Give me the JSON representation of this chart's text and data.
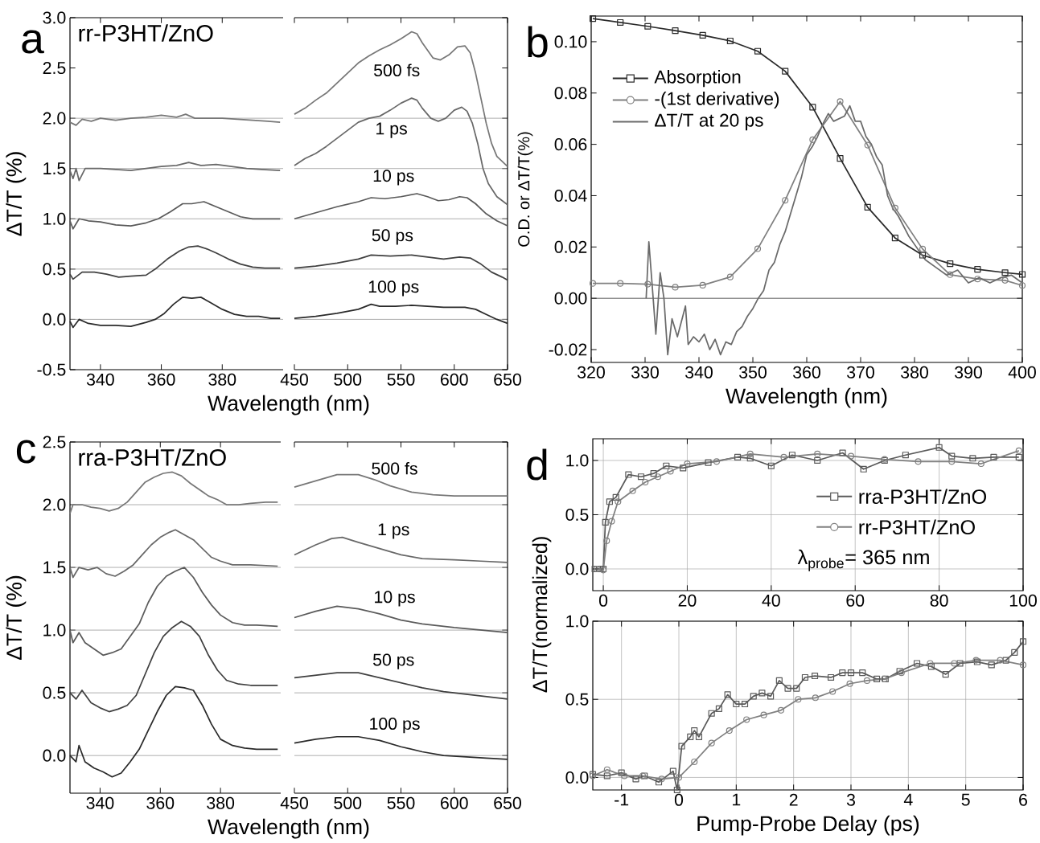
{
  "chart_data": [
    {
      "type": "line",
      "title": "a",
      "xlabel": "Wavelength (nm)",
      "ylabel": "ΔT/T (%)",
      "annotations": [
        "rr-P3HT/ZnO"
      ],
      "xlim": [
        330,
        400
      ],
      "ylim": [
        -0.5,
        3.0
      ],
      "xticks": [
        340,
        360,
        380
      ],
      "yticks": [
        {
          "value": -0.5,
          "label": "-0.5"
        },
        {
          "value": 0.0,
          "label": "0.0"
        },
        {
          "value": 0.5,
          "label": "0.5"
        },
        {
          "value": 1.0,
          "label": "1.0"
        },
        {
          "value": 1.5,
          "label": "1.5"
        },
        {
          "value": 2.0,
          "label": "2.0"
        },
        {
          "value": 2.5,
          "label": "2.5"
        },
        {
          "value": 3.0,
          "label": "3.0"
        }
      ],
      "ref_lines": [
        {
          "axis": "y",
          "value": 0,
          "color": "#999999"
        },
        {
          "axis": "y",
          "value": 0.5,
          "color": "#999999"
        },
        {
          "axis": "y",
          "value": 1.0,
          "color": "#999999"
        },
        {
          "axis": "y",
          "value": 1.5,
          "color": "#999999"
        },
        {
          "axis": "y",
          "value": 2.0,
          "color": "#999999"
        }
      ],
      "series": [
        {
          "color": "#777777",
          "x": [
            330,
            332,
            334,
            337,
            340,
            345,
            350,
            355,
            360,
            365,
            368,
            371,
            375,
            380,
            385,
            390,
            395,
            399
          ],
          "values": [
            1.96,
            1.93,
            1.99,
            1.97,
            2.0,
            1.98,
            2.0,
            2.01,
            2.03,
            2.01,
            2.04,
            2.0,
            2.0,
            2.0,
            1.99,
            1.98,
            1.97,
            1.96
          ]
        },
        {
          "color": "#686868",
          "x": [
            330,
            331,
            332,
            333,
            335,
            340,
            345,
            350,
            355,
            360,
            365,
            369,
            373,
            378,
            383,
            388,
            393,
            399
          ],
          "values": [
            1.48,
            1.4,
            1.5,
            1.38,
            1.5,
            1.5,
            1.49,
            1.48,
            1.5,
            1.52,
            1.53,
            1.56,
            1.53,
            1.54,
            1.52,
            1.5,
            1.49,
            1.48
          ]
        },
        {
          "color": "#5a5a5a",
          "x": [
            330,
            331,
            333,
            336,
            340,
            345,
            350,
            355,
            359,
            363,
            367,
            370,
            374,
            378,
            382,
            386,
            390,
            394,
            399
          ],
          "values": [
            0.98,
            0.9,
            1.0,
            0.98,
            0.97,
            0.94,
            0.93,
            0.96,
            1.0,
            1.07,
            1.15,
            1.15,
            1.17,
            1.12,
            1.07,
            1.02,
            1.0,
            1.0,
            1.0
          ]
        },
        {
          "color": "#404040",
          "x": [
            330,
            331,
            334,
            338,
            342,
            346,
            350,
            355,
            358,
            362,
            366,
            369,
            372,
            375,
            378,
            382,
            386,
            390,
            394,
            399
          ],
          "values": [
            0.45,
            0.4,
            0.47,
            0.47,
            0.45,
            0.42,
            0.43,
            0.44,
            0.5,
            0.6,
            0.68,
            0.72,
            0.73,
            0.7,
            0.66,
            0.6,
            0.55,
            0.52,
            0.51,
            0.51
          ]
        },
        {
          "color": "#2a2a2a",
          "x": [
            330,
            331,
            333,
            336,
            340,
            345,
            350,
            355,
            358,
            361,
            364,
            367,
            370,
            373,
            376,
            380,
            384,
            388,
            392,
            396,
            399
          ],
          "values": [
            -0.02,
            -0.08,
            0.0,
            -0.04,
            -0.06,
            -0.06,
            -0.07,
            -0.03,
            0.0,
            0.06,
            0.15,
            0.22,
            0.21,
            0.22,
            0.17,
            0.1,
            0.05,
            0.03,
            0.03,
            0.01,
            0.01
          ]
        }
      ]
    },
    {
      "type": "line",
      "tick_labels": "x",
      "xlim": [
        450,
        650
      ],
      "ylim": [
        -0.5,
        3.0
      ],
      "xticks": [
        450,
        500,
        550,
        600,
        650
      ],
      "yticks": [
        {
          "value": -0.5,
          "label": null
        },
        {
          "value": 0.0,
          "label": null
        },
        {
          "value": 0.5,
          "label": null
        },
        {
          "value": 1.0,
          "label": null
        },
        {
          "value": 1.5,
          "label": null
        },
        {
          "value": 2.0,
          "label": null
        },
        {
          "value": 2.5,
          "label": null
        },
        {
          "value": 3.0,
          "label": null
        }
      ],
      "annotations": [
        "500 fs",
        "1 ps",
        "10 ps",
        "50 ps",
        "100 ps"
      ],
      "ref_lines": [
        {
          "axis": "y",
          "value": 0,
          "color": "#999999"
        },
        {
          "axis": "y",
          "value": 0.5,
          "color": "#999999"
        },
        {
          "axis": "y",
          "value": 1.0,
          "color": "#999999"
        },
        {
          "axis": "y",
          "value": 1.5,
          "color": "#999999"
        },
        {
          "axis": "y",
          "value": 2.0,
          "color": "#999999"
        }
      ],
      "series": [
        {
          "color": "#777777",
          "x": [
            450,
            460,
            470,
            480,
            490,
            500,
            510,
            520,
            530,
            540,
            550,
            560,
            565,
            570,
            580,
            587,
            595,
            603,
            610,
            615,
            620,
            625,
            630,
            635,
            640,
            650
          ],
          "values": [
            2.04,
            2.1,
            2.18,
            2.25,
            2.35,
            2.45,
            2.55,
            2.62,
            2.68,
            2.73,
            2.79,
            2.86,
            2.84,
            2.75,
            2.6,
            2.58,
            2.63,
            2.71,
            2.72,
            2.65,
            2.45,
            2.2,
            1.95,
            1.75,
            1.62,
            1.52
          ]
        },
        {
          "color": "#686868",
          "x": [
            450,
            460,
            470,
            480,
            490,
            500,
            510,
            520,
            530,
            540,
            550,
            560,
            565,
            570,
            578,
            585,
            592,
            600,
            607,
            612,
            617,
            622,
            627,
            632,
            640,
            650
          ],
          "values": [
            1.53,
            1.6,
            1.65,
            1.72,
            1.8,
            1.88,
            1.96,
            2.0,
            2.02,
            2.08,
            2.15,
            2.2,
            2.18,
            2.1,
            2.0,
            1.97,
            2.0,
            2.08,
            2.11,
            2.07,
            1.95,
            1.75,
            1.5,
            1.35,
            1.22,
            1.14
          ]
        },
        {
          "color": "#5a5a5a",
          "x": [
            450,
            470,
            490,
            510,
            522,
            535,
            550,
            565,
            575,
            585,
            595,
            605,
            612,
            620,
            630,
            640,
            650
          ],
          "values": [
            1.0,
            1.06,
            1.12,
            1.17,
            1.21,
            1.2,
            1.22,
            1.25,
            1.22,
            1.18,
            1.19,
            1.22,
            1.21,
            1.15,
            1.05,
            0.98,
            0.93
          ]
        },
        {
          "color": "#404040",
          "x": [
            450,
            470,
            490,
            510,
            522,
            540,
            560,
            575,
            590,
            605,
            615,
            625,
            635,
            645,
            650
          ],
          "values": [
            0.51,
            0.53,
            0.56,
            0.6,
            0.64,
            0.63,
            0.64,
            0.62,
            0.6,
            0.62,
            0.61,
            0.55,
            0.47,
            0.42,
            0.39
          ]
        },
        {
          "color": "#2a2a2a",
          "x": [
            450,
            470,
            490,
            510,
            522,
            530,
            545,
            560,
            575,
            590,
            610,
            620,
            630,
            640,
            650
          ],
          "values": [
            0.01,
            0.03,
            0.06,
            0.1,
            0.15,
            0.13,
            0.13,
            0.14,
            0.13,
            0.12,
            0.12,
            0.1,
            0.05,
            0.0,
            -0.04
          ]
        }
      ]
    },
    {
      "type": "line",
      "title": "b",
      "xlabel": "Wavelength (nm)",
      "ylabel": "O.D. or ΔT/T(%)",
      "legend": "top left",
      "xlim": [
        320,
        400
      ],
      "ylim": [
        -0.025,
        0.11
      ],
      "xticks": [
        320,
        330,
        340,
        350,
        360,
        370,
        380,
        390,
        400
      ],
      "yticks": [
        {
          "value": -0.02,
          "label": "-0.02"
        },
        {
          "value": 0.0,
          "label": "0.00"
        },
        {
          "value": 0.02,
          "label": "0.02"
        },
        {
          "value": 0.04,
          "label": "0.04"
        },
        {
          "value": 0.06,
          "label": "0.06"
        },
        {
          "value": 0.08,
          "label": "0.08"
        },
        {
          "value": 0.1,
          "label": "0.10"
        }
      ],
      "ref_lines": [
        {
          "axis": "y",
          "value": 0,
          "color": "#333333"
        }
      ],
      "series": [
        {
          "name": "Absorption",
          "color": "#2a2a2a",
          "marker": "square",
          "x": [
            320.3,
            325.4,
            330.5,
            335.6,
            340.7,
            345.8,
            350.9,
            356.0,
            361.1,
            366.2,
            371.3,
            376.4,
            381.5,
            386.6,
            391.7,
            396.8,
            400
          ],
          "values": [
            0.109,
            0.1075,
            0.106,
            0.1043,
            0.1025,
            0.1003,
            0.0963,
            0.0885,
            0.0745,
            0.0545,
            0.0355,
            0.0235,
            0.0168,
            0.0135,
            0.0113,
            0.01,
            0.0093
          ]
        },
        {
          "name": "-(1st derivative)",
          "color": "#808080",
          "marker": "circle",
          "x": [
            320.3,
            325.4,
            330.5,
            335.6,
            340.7,
            345.8,
            350.9,
            356.0,
            361.1,
            366.2,
            371.3,
            376.4,
            381.5,
            386.6,
            391.7,
            396.8,
            400
          ],
          "values": [
            0.0058,
            0.0058,
            0.0055,
            0.0043,
            0.0051,
            0.0083,
            0.0193,
            0.0382,
            0.0618,
            0.0767,
            0.0597,
            0.0352,
            0.0192,
            0.0092,
            0.0075,
            0.007,
            0.005
          ]
        },
        {
          "name": "ΔT/T at 20 ps",
          "color": "#6a6a6a",
          "x": [
            330.2,
            330.7,
            331.5,
            332,
            332.8,
            333.5,
            334.2,
            335,
            336,
            337.5,
            338,
            339,
            340,
            341,
            342,
            343,
            344,
            345,
            346,
            347,
            348,
            349,
            350,
            351,
            352,
            353,
            354,
            355,
            356,
            357,
            358,
            359,
            360,
            361,
            362,
            363,
            364,
            365,
            366,
            367,
            368,
            369,
            370,
            371,
            372,
            373,
            374,
            375,
            376,
            377,
            378,
            379,
            380,
            381,
            382,
            384,
            386,
            388,
            390,
            392,
            394,
            396,
            398,
            400
          ],
          "values": [
            0.0,
            0.022,
            0.0,
            -0.014,
            0.01,
            0.0,
            -0.022,
            -0.008,
            -0.015,
            -0.003,
            -0.018,
            -0.015,
            -0.017,
            -0.014,
            -0.02,
            -0.016,
            -0.022,
            -0.017,
            -0.018,
            -0.013,
            -0.011,
            -0.007,
            -0.004,
            0.0,
            0.003,
            0.011,
            0.014,
            0.021,
            0.026,
            0.033,
            0.04,
            0.047,
            0.056,
            0.059,
            0.063,
            0.068,
            0.072,
            0.069,
            0.07,
            0.071,
            0.075,
            0.069,
            0.069,
            0.063,
            0.06,
            0.055,
            0.052,
            0.04,
            0.035,
            0.032,
            0.028,
            0.024,
            0.021,
            0.018,
            0.015,
            0.012,
            0.009,
            0.011,
            0.006,
            0.008,
            0.006,
            0.008,
            0.009,
            0.006
          ]
        }
      ]
    },
    {
      "type": "line",
      "title": "c",
      "xlabel": "Wavelength (nm)",
      "ylabel": "ΔT/T (%)",
      "annotations": [
        "rra-P3HT/ZnO"
      ],
      "xlim": [
        330,
        400
      ],
      "ylim": [
        -0.3,
        2.5
      ],
      "xticks": [
        340,
        360,
        380
      ],
      "yticks": [
        {
          "value": 0.0,
          "label": "0.0"
        },
        {
          "value": 0.5,
          "label": "0.5"
        },
        {
          "value": 1.0,
          "label": "1.0"
        },
        {
          "value": 1.5,
          "label": "1.5"
        },
        {
          "value": 2.0,
          "label": "2.0"
        },
        {
          "value": 2.5,
          "label": "2.5"
        }
      ],
      "ref_lines": [
        {
          "axis": "y",
          "value": 0,
          "color": "#999999"
        },
        {
          "axis": "y",
          "value": 0.5,
          "color": "#999999"
        },
        {
          "axis": "y",
          "value": 1.0,
          "color": "#999999"
        },
        {
          "axis": "y",
          "value": 1.5,
          "color": "#999999"
        },
        {
          "axis": "y",
          "value": 2.0,
          "color": "#999999"
        }
      ],
      "series": [
        {
          "color": "#777777",
          "x": [
            330,
            331,
            334,
            337,
            340,
            343,
            346,
            349,
            352,
            355,
            358,
            361,
            364,
            367,
            370,
            373,
            376,
            379,
            382,
            386,
            390,
            395,
            399
          ],
          "values": [
            1.93,
            2.0,
            2.0,
            1.98,
            1.97,
            1.95,
            1.97,
            2.02,
            2.1,
            2.18,
            2.22,
            2.25,
            2.26,
            2.23,
            2.17,
            2.12,
            2.07,
            2.04,
            2.0,
            2.0,
            2.01,
            2.02,
            2.02
          ]
        },
        {
          "color": "#686868",
          "x": [
            330,
            331,
            333,
            336,
            339,
            342,
            345,
            348,
            351,
            354,
            357,
            360,
            363,
            365,
            368,
            371,
            374,
            377,
            380,
            384,
            390,
            399
          ],
          "values": [
            1.5,
            1.42,
            1.5,
            1.48,
            1.5,
            1.45,
            1.43,
            1.47,
            1.52,
            1.6,
            1.68,
            1.74,
            1.78,
            1.8,
            1.76,
            1.72,
            1.65,
            1.58,
            1.55,
            1.52,
            1.52,
            1.51
          ]
        },
        {
          "color": "#5a5a5a",
          "x": [
            330,
            331,
            333,
            335,
            338,
            341,
            344,
            347,
            350,
            353,
            356,
            359,
            362,
            365,
            368,
            371,
            374,
            377,
            380,
            384,
            388,
            392,
            399
          ],
          "values": [
            1.0,
            0.9,
            0.98,
            0.9,
            0.85,
            0.8,
            0.82,
            0.85,
            0.95,
            1.05,
            1.22,
            1.35,
            1.43,
            1.47,
            1.5,
            1.42,
            1.3,
            1.2,
            1.12,
            1.06,
            1.04,
            1.04,
            1.03
          ]
        },
        {
          "color": "#404040",
          "x": [
            330,
            332,
            334,
            337,
            340,
            343,
            346,
            349,
            352,
            355,
            358,
            361,
            364,
            367,
            370,
            373,
            376,
            379,
            382,
            386,
            390,
            394,
            399
          ],
          "values": [
            0.5,
            0.45,
            0.52,
            0.42,
            0.38,
            0.35,
            0.37,
            0.4,
            0.48,
            0.65,
            0.82,
            0.95,
            1.02,
            1.07,
            1.03,
            0.95,
            0.8,
            0.68,
            0.6,
            0.57,
            0.56,
            0.56,
            0.56
          ]
        },
        {
          "color": "#2a2a2a",
          "x": [
            330,
            332,
            333,
            335,
            338,
            341,
            344,
            347,
            350,
            353,
            356,
            359,
            362,
            365,
            368,
            371,
            374,
            377,
            380,
            384,
            388,
            392,
            399
          ],
          "values": [
            0.0,
            -0.05,
            0.08,
            -0.05,
            -0.1,
            -0.13,
            -0.17,
            -0.14,
            -0.05,
            0.05,
            0.2,
            0.35,
            0.48,
            0.55,
            0.54,
            0.52,
            0.4,
            0.25,
            0.13,
            0.08,
            0.06,
            0.05,
            0.05
          ]
        }
      ]
    },
    {
      "type": "line",
      "tick_labels": "x",
      "xlim": [
        450,
        650
      ],
      "ylim": [
        -0.3,
        2.5
      ],
      "xticks": [
        450,
        500,
        550,
        600,
        650
      ],
      "yticks": [
        {
          "value": 0.0,
          "label": null
        },
        {
          "value": 0.5,
          "label": null
        },
        {
          "value": 1.0,
          "label": null
        },
        {
          "value": 1.5,
          "label": null
        },
        {
          "value": 2.0,
          "label": null
        },
        {
          "value": 2.5,
          "label": null
        }
      ],
      "annotations": [
        "500 fs",
        "1 ps",
        "10 ps",
        "50 ps",
        "100 ps"
      ],
      "ref_lines": [
        {
          "axis": "y",
          "value": 0,
          "color": "#999999"
        },
        {
          "axis": "y",
          "value": 0.5,
          "color": "#999999"
        },
        {
          "axis": "y",
          "value": 1.0,
          "color": "#999999"
        },
        {
          "axis": "y",
          "value": 1.5,
          "color": "#999999"
        },
        {
          "axis": "y",
          "value": 2.0,
          "color": "#999999"
        }
      ],
      "series": [
        {
          "color": "#777777",
          "x": [
            450,
            470,
            490,
            510,
            525,
            540,
            560,
            580,
            600,
            625,
            650
          ],
          "values": [
            2.14,
            2.19,
            2.24,
            2.24,
            2.2,
            2.15,
            2.1,
            2.08,
            2.07,
            2.07,
            2.07
          ]
        },
        {
          "color": "#686868",
          "x": [
            450,
            470,
            485,
            495,
            510,
            530,
            550,
            570,
            600,
            625,
            650
          ],
          "values": [
            1.6,
            1.68,
            1.73,
            1.74,
            1.7,
            1.65,
            1.6,
            1.57,
            1.56,
            1.55,
            1.54
          ]
        },
        {
          "color": "#5a5a5a",
          "x": [
            450,
            470,
            490,
            510,
            530,
            550,
            570,
            600,
            625,
            650
          ],
          "values": [
            1.1,
            1.15,
            1.19,
            1.17,
            1.13,
            1.08,
            1.05,
            1.02,
            1.0,
            0.98
          ]
        },
        {
          "color": "#404040",
          "x": [
            450,
            470,
            490,
            510,
            530,
            550,
            570,
            590,
            610,
            630,
            650
          ],
          "values": [
            0.62,
            0.64,
            0.66,
            0.66,
            0.62,
            0.58,
            0.54,
            0.51,
            0.49,
            0.47,
            0.45
          ]
        },
        {
          "color": "#2a2a2a",
          "x": [
            450,
            470,
            490,
            510,
            530,
            550,
            570,
            590,
            610,
            630,
            650
          ],
          "values": [
            0.1,
            0.13,
            0.15,
            0.15,
            0.12,
            0.07,
            0.03,
            0.0,
            -0.01,
            -0.02,
            -0.03
          ]
        }
      ]
    },
    {
      "type": "line",
      "title": "d",
      "ylabel": "ΔT/T(normalized)",
      "legend": "right",
      "grid": true,
      "annotations": [
        "λ$_{probe}$= 365 nm"
      ],
      "xlim": [
        -2.5,
        100
      ],
      "ylim": [
        -0.2,
        1.2
      ],
      "xticks": [
        0,
        20,
        40,
        60,
        80,
        100
      ],
      "yticks": [
        {
          "value": 0.0,
          "label": "0.0"
        },
        {
          "value": 0.5,
          "label": "0.5"
        },
        {
          "value": 1.0,
          "label": "1.0"
        }
      ],
      "series": [
        {
          "name": "rra-P3HT/ZnO",
          "color": "#5a5a5a",
          "marker": "square",
          "x": [
            -2,
            -1,
            0,
            0.5,
            1.5,
            3,
            6,
            9,
            12,
            15,
            19,
            25,
            32,
            35,
            40,
            45,
            51,
            57,
            62,
            67,
            72,
            80,
            83,
            88,
            93,
            99
          ],
          "values": [
            0.0,
            0.0,
            0.0,
            0.43,
            0.62,
            0.66,
            0.87,
            0.85,
            0.88,
            0.95,
            0.93,
            0.98,
            1.03,
            1.02,
            0.95,
            1.05,
            1.0,
            1.07,
            0.92,
            1.0,
            1.05,
            1.12,
            1.04,
            1.02,
            1.03,
            1.03
          ]
        },
        {
          "name": "rr-P3HT/ZnO",
          "color": "#808080",
          "marker": "circle",
          "x": [
            -1.5,
            0,
            0.8,
            2,
            3.5,
            7,
            10,
            13,
            16,
            20,
            27,
            35,
            43,
            51,
            59,
            67,
            75,
            83,
            90,
            99
          ],
          "values": [
            0.0,
            -0.01,
            0.26,
            0.44,
            0.62,
            0.72,
            0.8,
            0.85,
            0.9,
            0.97,
            0.99,
            1.06,
            1.03,
            1.06,
            1.04,
            1.01,
            0.99,
            0.99,
            0.97,
            1.09
          ]
        }
      ]
    },
    {
      "type": "line",
      "xlabel": "Pump-Probe Delay (ps)",
      "grid": true,
      "xlim": [
        -1.5,
        6
      ],
      "ylim": [
        -0.08,
        1.0
      ],
      "xticks": [
        -1,
        0,
        1,
        2,
        3,
        4,
        5,
        6
      ],
      "yticks": [
        {
          "value": 0.0,
          "label": "0.0"
        },
        {
          "value": 0.5,
          "label": "0.5"
        },
        {
          "value": 1.0,
          "label": "1.0"
        }
      ],
      "series": [
        {
          "color": "#5a5a5a",
          "marker": "square",
          "x": [
            -1.5,
            -1.25,
            -1.0,
            -0.75,
            -0.6,
            -0.35,
            -0.1,
            -0.03,
            0.05,
            0.2,
            0.27,
            0.35,
            0.57,
            0.7,
            0.85,
            1.0,
            1.15,
            1.3,
            1.45,
            1.6,
            1.75,
            1.9,
            2.05,
            2.2,
            2.37,
            2.65,
            2.85,
            3.0,
            3.2,
            3.45,
            3.6,
            3.85,
            4.15,
            4.4,
            4.65,
            4.9,
            5.2,
            5.45,
            5.7,
            5.85,
            6.0
          ],
          "values": [
            0.02,
            0.01,
            0.03,
            -0.01,
            0.01,
            -0.03,
            0.04,
            -0.08,
            0.2,
            0.26,
            0.3,
            0.26,
            0.41,
            0.44,
            0.53,
            0.47,
            0.47,
            0.52,
            0.54,
            0.52,
            0.62,
            0.57,
            0.57,
            0.64,
            0.65,
            0.64,
            0.67,
            0.67,
            0.67,
            0.63,
            0.63,
            0.68,
            0.73,
            0.71,
            0.66,
            0.73,
            0.74,
            0.72,
            0.75,
            0.8,
            0.87
          ]
        },
        {
          "color": "#808080",
          "marker": "circle",
          "x": [
            -1.5,
            -1.25,
            -0.95,
            -0.63,
            -0.3,
            0.0,
            0.27,
            0.57,
            0.88,
            1.18,
            1.48,
            1.78,
            2.08,
            2.38,
            2.68,
            2.98,
            3.28,
            3.58,
            3.88,
            4.38,
            4.8,
            5.18,
            5.6,
            6.0
          ],
          "values": [
            0.01,
            0.05,
            0.01,
            0.01,
            -0.01,
            0.0,
            0.1,
            0.22,
            0.3,
            0.37,
            0.4,
            0.43,
            0.5,
            0.51,
            0.55,
            0.6,
            0.62,
            0.63,
            0.67,
            0.73,
            0.73,
            0.75,
            0.75,
            0.72
          ]
        }
      ]
    }
  ]
}
